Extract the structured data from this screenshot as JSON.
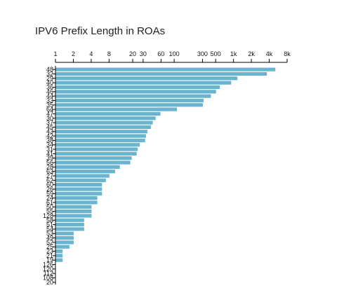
{
  "chart_data": {
    "type": "bar",
    "orientation": "horizontal",
    "title": "IPV6 Prefix Length in ROAs",
    "xlabel": "",
    "ylabel": "",
    "xscale": "log",
    "xlim": [
      1,
      8000
    ],
    "x_axis_position": "top",
    "grid": false,
    "bar_color": "#6bb4cf",
    "x_ticks": [
      "1",
      "2",
      "4",
      "8",
      "20",
      "30",
      "60",
      "100",
      "300",
      "500",
      "1k",
      "2k",
      "4k",
      "8k"
    ],
    "x_tick_values": [
      1,
      2,
      4,
      8,
      20,
      30,
      60,
      100,
      300,
      500,
      1000,
      2000,
      4000,
      8000
    ],
    "categories": [
      "48",
      "32",
      "29",
      "40",
      "36",
      "46",
      "44",
      "33",
      "35",
      "64",
      "47",
      "30",
      "37",
      "45",
      "43",
      "42",
      "38",
      "34",
      "31",
      "41",
      "39",
      "56",
      "28",
      "63",
      "27",
      "62",
      "60",
      "26",
      "59",
      "24",
      "61",
      "50",
      "55",
      "128",
      "58",
      "51",
      "54",
      "53",
      "49",
      "52",
      "25",
      "23",
      "21",
      "19",
      "126",
      "120",
      "112",
      "108",
      "20"
    ],
    "values": [
      5000,
      3600,
      1150,
      900,
      580,
      500,
      410,
      310,
      300,
      110,
      58,
      48,
      43,
      40,
      35,
      33,
      32,
      26,
      24,
      23,
      19,
      18,
      12,
      10,
      8,
      7,
      6,
      6,
      6,
      5,
      5,
      4,
      4,
      4,
      3,
      3,
      3,
      2,
      2,
      2,
      1.7,
      1.3,
      1.3,
      1.3,
      1,
      1,
      1,
      1,
      1
    ]
  }
}
